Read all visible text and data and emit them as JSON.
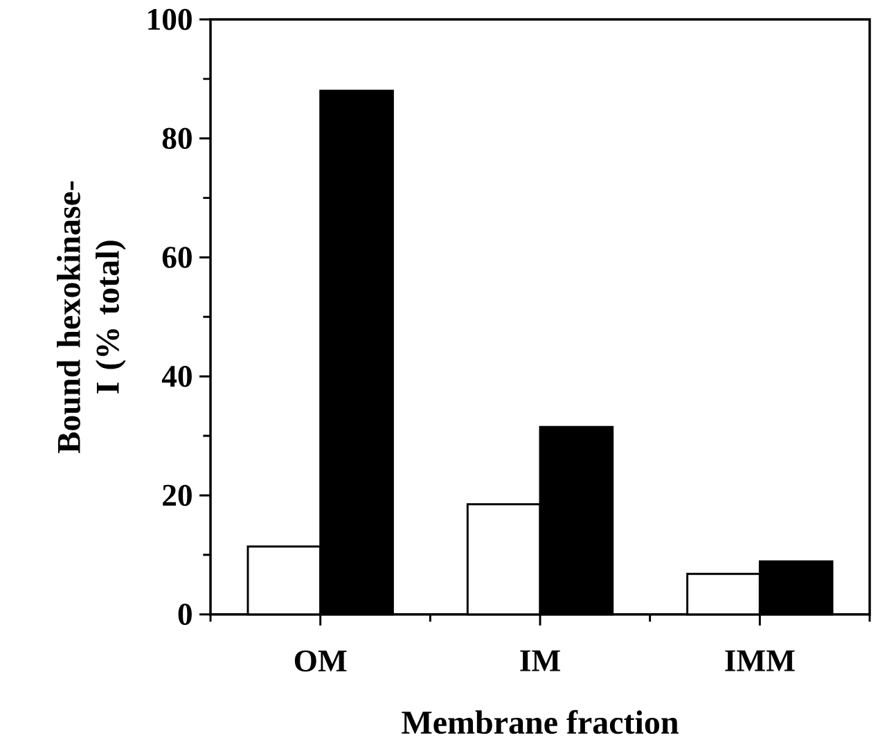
{
  "chart_data": {
    "type": "bar",
    "xlabel": "Membrane fraction",
    "ylabel": "Bound hexokinase-I (% total)",
    "categories": [
      "OM",
      "IM",
      "IMM"
    ],
    "series": [
      {
        "color": "#ffffff",
        "values": [
          11.4,
          18.5,
          6.8
        ]
      },
      {
        "color": "#000000",
        "values": [
          88,
          31.5,
          8.9
        ]
      }
    ],
    "ylim": [
      0,
      100
    ],
    "yticks": [
      0,
      20,
      40,
      60,
      80,
      100
    ]
  }
}
